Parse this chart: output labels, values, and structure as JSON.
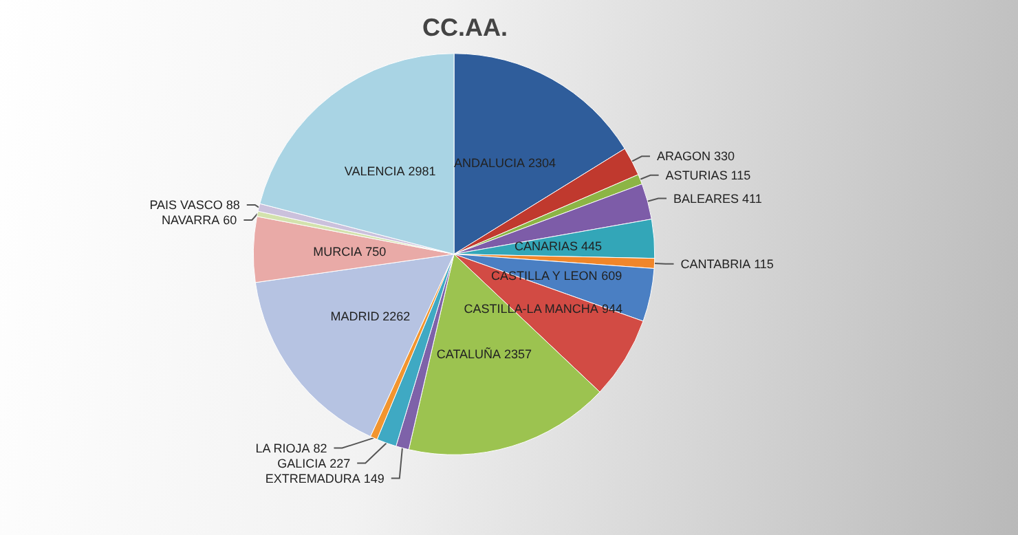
{
  "chart_data": {
    "type": "pie",
    "title": "CC.AA.",
    "categories": [
      "ANDALUCIA",
      "ARAGON",
      "ASTURIAS",
      "BALEARES",
      "CANARIAS",
      "CANTABRIA",
      "CASTILLA Y LEON",
      "CASTILLA-LA MANCHA",
      "CATALUÑA",
      "EXTREMADURA",
      "GALICIA",
      "LA RIOJA",
      "MADRID",
      "MURCIA",
      "NAVARRA",
      "PAIS VASCO",
      "VALENCIA"
    ],
    "values": [
      2304,
      330,
      115,
      411,
      445,
      115,
      609,
      944,
      2357,
      149,
      227,
      82,
      2262,
      750,
      60,
      88,
      2981
    ],
    "colors": [
      "#2f5d9b",
      "#c0392e",
      "#8cb545",
      "#7d5ca8",
      "#33a6b8",
      "#f0862a",
      "#4a7fc3",
      "#d24b44",
      "#9cc350",
      "#7e62a9",
      "#3fa9c3",
      "#f2952f",
      "#b6c3e2",
      "#e9aaa7",
      "#d3e2ad",
      "#cbc1dc",
      "#a9d4e4"
    ],
    "data_labels": true,
    "legend": false
  }
}
